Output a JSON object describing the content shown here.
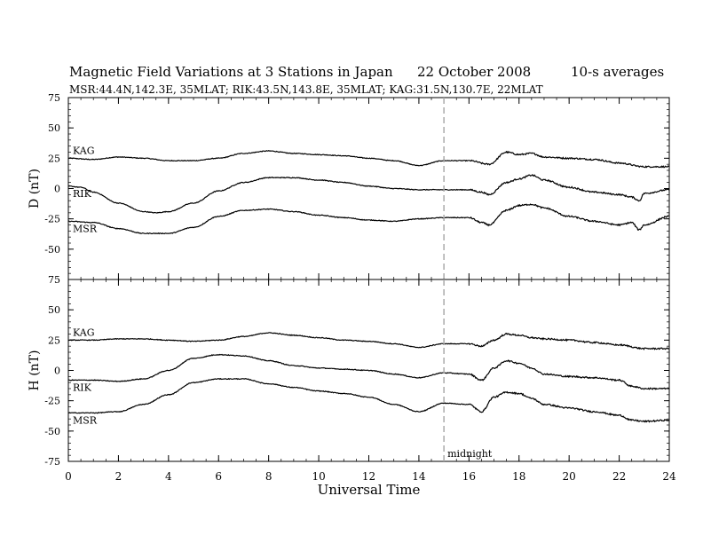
{
  "header": {
    "title": "Magnetic Field Variations at 3 Stations in Japan",
    "date": "22 October 2008",
    "averaging": "10-s averages",
    "stations": "MSR:44.4N,142.3E, 35MLAT;  RIK:43.5N,143.8E, 35MLAT;  KAG:31.5N,130.7E, 22MLAT"
  },
  "chart_data": {
    "type": "line",
    "xlabel": "Universal Time",
    "xlim": [
      0,
      24
    ],
    "xticks": [
      0,
      2,
      4,
      6,
      8,
      10,
      12,
      14,
      16,
      18,
      20,
      22,
      24
    ],
    "marker": {
      "x": 15,
      "label": "midnight",
      "style": "dashed",
      "color": "#aaaaaa"
    },
    "panels": [
      {
        "ylabel": "D (nT)",
        "ylim": [
          -75,
          75
        ],
        "yticks": [
          75,
          50,
          25,
          0,
          -25,
          -50,
          -75
        ],
        "series": [
          {
            "name": "KAG",
            "x": [
              0,
              1,
              2,
              3,
              4,
              5,
              6,
              7,
              8,
              9,
              10,
              11,
              12,
              13,
              14,
              15,
              16,
              16.8,
              17.5,
              18,
              18.5,
              19,
              20,
              21,
              22,
              23,
              24
            ],
            "y": [
              25,
              24,
              26,
              25,
              23,
              23,
              25,
              29,
              31,
              29,
              28,
              27,
              25,
              23,
              19,
              23,
              23,
              20,
              30,
              28,
              29,
              26,
              25,
              24,
              21,
              18,
              18
            ]
          },
          {
            "name": "RIK",
            "x": [
              0,
              0.5,
              1,
              2,
              3,
              3.5,
              4,
              5,
              6,
              7,
              8,
              9,
              10,
              11,
              12,
              13,
              14,
              15,
              16,
              16.5,
              16.8,
              17.5,
              18,
              18.5,
              19,
              20,
              21,
              22,
              22.5,
              22.8,
              23,
              24
            ],
            "y": [
              2,
              1,
              -3,
              -12,
              -19,
              -20,
              -19,
              -12,
              -2,
              5,
              9,
              9,
              7,
              5,
              2,
              0,
              -1,
              -1,
              -1,
              -3,
              -5,
              5,
              8,
              11,
              7,
              1,
              -3,
              -5,
              -7,
              -10,
              -4,
              -1
            ]
          },
          {
            "name": "MSR",
            "x": [
              0,
              1,
              2,
              3,
              4,
              5,
              6,
              7,
              8,
              9,
              10,
              11,
              12,
              13,
              14,
              15,
              16,
              16.5,
              16.8,
              17.5,
              18,
              18.5,
              19,
              20,
              21,
              22,
              22.5,
              22.8,
              23,
              24
            ],
            "y": [
              -27,
              -28,
              -33,
              -37,
              -37,
              -32,
              -23,
              -18,
              -17,
              -19,
              -22,
              -24,
              -26,
              -27,
              -25,
              -24,
              -24,
              -28,
              -30,
              -18,
              -14,
              -13,
              -16,
              -23,
              -27,
              -30,
              -28,
              -34,
              -30,
              -23
            ]
          }
        ]
      },
      {
        "ylabel": "H (nT)",
        "ylim": [
          -75,
          75
        ],
        "yticks": [
          75,
          50,
          25,
          0,
          -25,
          -50,
          -75
        ],
        "series": [
          {
            "name": "KAG",
            "x": [
              0,
              1,
              2,
              3,
              4,
              5,
              6,
              7,
              8,
              9,
              10,
              11,
              12,
              13,
              14,
              15,
              16,
              16.5,
              17,
              17.5,
              18,
              18.5,
              19,
              20,
              21,
              22,
              23,
              24
            ],
            "y": [
              25,
              25,
              26,
              26,
              25,
              24,
              25,
              28,
              31,
              29,
              27,
              25,
              24,
              22,
              19,
              22,
              22,
              20,
              25,
              30,
              29,
              27,
              26,
              25,
              23,
              21,
              18,
              18
            ]
          },
          {
            "name": "RIK",
            "x": [
              0,
              1,
              2,
              3,
              4,
              5,
              6,
              7,
              8,
              9,
              10,
              11,
              12,
              13,
              14,
              15,
              16,
              16.5,
              17,
              17.5,
              18,
              18.5,
              19,
              20,
              21,
              22,
              22.5,
              23,
              24
            ],
            "y": [
              -8,
              -8,
              -9,
              -7,
              0,
              10,
              13,
              12,
              8,
              4,
              2,
              1,
              0,
              -3,
              -6,
              -2,
              -3,
              -8,
              2,
              8,
              6,
              2,
              -3,
              -5,
              -6,
              -8,
              -13,
              -15,
              -15
            ]
          },
          {
            "name": "MSR",
            "x": [
              0,
              1,
              2,
              3,
              4,
              5,
              6,
              7,
              8,
              9,
              10,
              11,
              12,
              13,
              14,
              15,
              16,
              16.5,
              17,
              17.5,
              18,
              18.5,
              19,
              20,
              21,
              22,
              22.5,
              23,
              24
            ],
            "y": [
              -35,
              -35,
              -34,
              -28,
              -20,
              -10,
              -7,
              -7,
              -11,
              -14,
              -17,
              -19,
              -22,
              -28,
              -34,
              -27,
              -28,
              -34,
              -22,
              -18,
              -19,
              -23,
              -28,
              -31,
              -34,
              -37,
              -41,
              -42,
              -41
            ]
          }
        ]
      }
    ]
  }
}
